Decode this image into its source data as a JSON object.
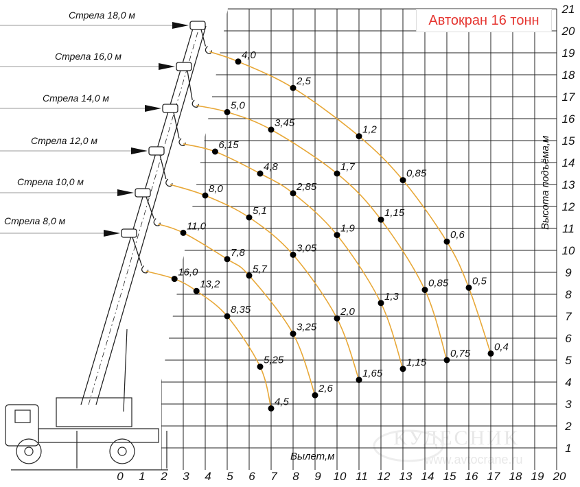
{
  "title": "Автокран 16 тонн",
  "colors": {
    "curve": "#e8a838",
    "title": "#e53530",
    "grid": "#222222",
    "dot": "#000000"
  },
  "watermark": {
    "brand": "КУДЕСНИК",
    "site": "www.avtocrane.ru"
  },
  "chart_data": {
    "type": "line",
    "title": "Автокран 16 тонн",
    "xlabel": "Вылет,м",
    "ylabel": "Высота подъёма,м",
    "xlim": [
      0,
      20
    ],
    "ylim": [
      0,
      21
    ],
    "xticks": [
      "0",
      "1",
      "2",
      "3",
      "4",
      "5",
      "6",
      "7",
      "8",
      "9",
      "10",
      "11",
      "12",
      "13",
      "14",
      "15",
      "16",
      "17",
      "18",
      "19",
      "20"
    ],
    "yticks": [
      "1",
      "2",
      "3",
      "4",
      "5",
      "6",
      "7",
      "8",
      "9",
      "10",
      "11",
      "12",
      "13",
      "14",
      "15",
      "16",
      "17",
      "18",
      "19",
      "20",
      "21"
    ],
    "grid": true,
    "units": "point labels: load capacity, t",
    "series": [
      {
        "name": "Стрела 8,0 м",
        "hook": [
          1.3,
          9.05
        ],
        "points": [
          {
            "x": 2.6,
            "y": 8.7,
            "label": "16,0"
          },
          {
            "x": 3.6,
            "y": 8.15,
            "label": "13,2"
          },
          {
            "x": 5,
            "y": 7.0,
            "label": "8,35"
          },
          {
            "x": 6.5,
            "y": 4.7,
            "label": "5,25"
          },
          {
            "x": 7,
            "y": 2.8,
            "label": "4,5"
          }
        ]
      },
      {
        "name": "Стрела 10,0 м",
        "hook": [
          1.85,
          11.2
        ],
        "points": [
          {
            "x": 3,
            "y": 10.8,
            "label": "11,0"
          },
          {
            "x": 5,
            "y": 9.6,
            "label": "7,8"
          },
          {
            "x": 6,
            "y": 8.85,
            "label": "5,7"
          },
          {
            "x": 8,
            "y": 6.2,
            "label": "3,25"
          },
          {
            "x": 9,
            "y": 3.4,
            "label": "2,6"
          }
        ]
      },
      {
        "name": "Стрела 12,0 м",
        "hook": [
          2.4,
          13.0
        ],
        "points": [
          {
            "x": 4,
            "y": 12.5,
            "label": "8,0"
          },
          {
            "x": 6,
            "y": 11.5,
            "label": "5,1"
          },
          {
            "x": 8,
            "y": 9.8,
            "label": "3,05"
          },
          {
            "x": 10,
            "y": 6.9,
            "label": "2,0"
          },
          {
            "x": 11,
            "y": 4.1,
            "label": "1,65"
          }
        ]
      },
      {
        "name": "Стрела 14,0 м",
        "hook": [
          3.0,
          14.85
        ],
        "points": [
          {
            "x": 4.45,
            "y": 14.5,
            "label": "6,15"
          },
          {
            "x": 6.5,
            "y": 13.5,
            "label": "4,8"
          },
          {
            "x": 8,
            "y": 12.6,
            "label": "2,85"
          },
          {
            "x": 10,
            "y": 10.7,
            "label": "1,9"
          },
          {
            "x": 12,
            "y": 7.6,
            "label": "1,3"
          },
          {
            "x": 13,
            "y": 4.6,
            "label": "1,15"
          }
        ]
      },
      {
        "name": "Стрела 16,0 м",
        "hook": [
          3.6,
          16.6
        ],
        "points": [
          {
            "x": 5,
            "y": 16.3,
            "label": "5,0"
          },
          {
            "x": 7,
            "y": 15.5,
            "label": "3,45"
          },
          {
            "x": 10,
            "y": 13.5,
            "label": "1,7"
          },
          {
            "x": 12,
            "y": 11.4,
            "label": "1,15"
          },
          {
            "x": 14,
            "y": 8.2,
            "label": "0,85"
          },
          {
            "x": 15,
            "y": 5.0,
            "label": "0,75"
          }
        ]
      },
      {
        "name": "Стрела 18,0 м",
        "hook": [
          4.2,
          19.05
        ],
        "points": [
          {
            "x": 5.5,
            "y": 18.6,
            "label": "4,0"
          },
          {
            "x": 8,
            "y": 17.4,
            "label": "2,5"
          },
          {
            "x": 11,
            "y": 15.2,
            "label": "1,2"
          },
          {
            "x": 13,
            "y": 13.2,
            "label": "0,85"
          },
          {
            "x": 15,
            "y": 10.4,
            "label": "0,6"
          },
          {
            "x": 16,
            "y": 8.3,
            "label": "0,5"
          },
          {
            "x": 17,
            "y": 5.3,
            "label": "0,4"
          }
        ]
      }
    ]
  }
}
